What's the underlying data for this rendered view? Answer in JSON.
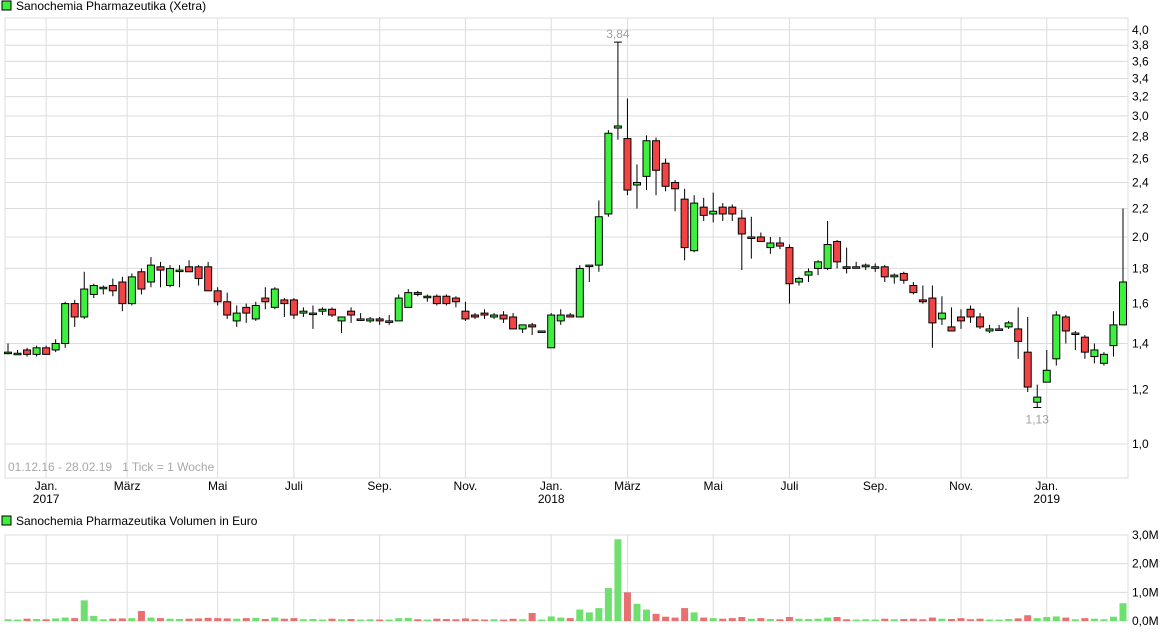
{
  "legend_colors": {
    "green": "#3ef03e",
    "red": "#f24444",
    "grid": "#dcdcdc",
    "annotation": "#a0a0a0"
  },
  "chart_data": [
    {
      "type": "candlestick",
      "title": "Sanochemia Pharmazeutika (Xetra)",
      "note": "01.12.16 - 28.02.19   1 Tick = 1 Woche",
      "y_scale": "log",
      "ylim": [
        0.92,
        4.1
      ],
      "y_ticks": [
        1.0,
        1.2,
        1.4,
        1.6,
        1.8,
        2.0,
        2.2,
        2.4,
        2.6,
        2.8,
        3.0,
        3.2,
        3.4,
        3.6,
        3.8,
        4.0
      ],
      "y_tick_labels": [
        "1,0",
        "1,2",
        "1,4",
        "1,6",
        "1,8",
        "2,0",
        "2,2",
        "2,4",
        "2,6",
        "2,8",
        "3,0",
        "3,2",
        "3,4",
        "3,6",
        "3,8",
        "4,0"
      ],
      "grid": true,
      "x_labels": [
        {
          "month": "Jan.",
          "year": "2017",
          "week": 4
        },
        {
          "month": "März",
          "year": "",
          "week": 12.5
        },
        {
          "month": "Mai",
          "year": "",
          "week": 22
        },
        {
          "month": "Juli",
          "year": "",
          "week": 30
        },
        {
          "month": "Sep.",
          "year": "",
          "week": 39
        },
        {
          "month": "Nov.",
          "year": "",
          "week": 48
        },
        {
          "month": "Jan.",
          "year": "2018",
          "week": 57
        },
        {
          "month": "März",
          "year": "",
          "week": 65
        },
        {
          "month": "Mai",
          "year": "",
          "week": 74
        },
        {
          "month": "Juli",
          "year": "",
          "week": 82
        },
        {
          "month": "Sep.",
          "year": "",
          "week": 91
        },
        {
          "month": "Nov.",
          "year": "",
          "week": 100
        },
        {
          "month": "Jan.",
          "year": "2019",
          "week": 109
        }
      ],
      "annotations": [
        {
          "text": "3,84",
          "week": 64,
          "value": 3.84,
          "position": "above"
        },
        {
          "text": "1,13",
          "week": 108,
          "value": 1.13,
          "position": "below"
        }
      ],
      "ohlc": [
        [
          1.36,
          1.4,
          1.35,
          1.36
        ],
        [
          1.355,
          1.37,
          1.35,
          1.355
        ],
        [
          1.37,
          1.38,
          1.34,
          1.35
        ],
        [
          1.35,
          1.39,
          1.34,
          1.38
        ],
        [
          1.38,
          1.39,
          1.35,
          1.35
        ],
        [
          1.37,
          1.42,
          1.36,
          1.4
        ],
        [
          1.4,
          1.61,
          1.38,
          1.6
        ],
        [
          1.6,
          1.62,
          1.48,
          1.53
        ],
        [
          1.53,
          1.78,
          1.52,
          1.68
        ],
        [
          1.65,
          1.71,
          1.63,
          1.7
        ],
        [
          1.69,
          1.7,
          1.65,
          1.69
        ],
        [
          1.7,
          1.74,
          1.64,
          1.67
        ],
        [
          1.72,
          1.75,
          1.56,
          1.6
        ],
        [
          1.6,
          1.77,
          1.59,
          1.75
        ],
        [
          1.78,
          1.8,
          1.65,
          1.68
        ],
        [
          1.72,
          1.87,
          1.69,
          1.82
        ],
        [
          1.81,
          1.84,
          1.69,
          1.79
        ],
        [
          1.7,
          1.82,
          1.69,
          1.8
        ],
        [
          1.79,
          1.82,
          1.69,
          1.79
        ],
        [
          1.81,
          1.85,
          1.79,
          1.78
        ],
        [
          1.81,
          1.82,
          1.7,
          1.74
        ],
        [
          1.81,
          1.84,
          1.67,
          1.67
        ],
        [
          1.67,
          1.69,
          1.59,
          1.61
        ],
        [
          1.61,
          1.66,
          1.52,
          1.54
        ],
        [
          1.51,
          1.59,
          1.48,
          1.55
        ],
        [
          1.58,
          1.6,
          1.5,
          1.55
        ],
        [
          1.52,
          1.61,
          1.51,
          1.59
        ],
        [
          1.63,
          1.69,
          1.57,
          1.61
        ],
        [
          1.58,
          1.69,
          1.57,
          1.68
        ],
        [
          1.62,
          1.63,
          1.53,
          1.6
        ],
        [
          1.62,
          1.63,
          1.52,
          1.54
        ],
        [
          1.55,
          1.58,
          1.53,
          1.56
        ],
        [
          1.55,
          1.59,
          1.47,
          1.55
        ],
        [
          1.56,
          1.58,
          1.54,
          1.57
        ],
        [
          1.57,
          1.58,
          1.53,
          1.54
        ],
        [
          1.51,
          1.53,
          1.45,
          1.53
        ],
        [
          1.56,
          1.58,
          1.5,
          1.54
        ],
        [
          1.52,
          1.55,
          1.51,
          1.52
        ],
        [
          1.51,
          1.53,
          1.5,
          1.52
        ],
        [
          1.52,
          1.53,
          1.49,
          1.51
        ],
        [
          1.51,
          1.54,
          1.49,
          1.51
        ],
        [
          1.51,
          1.65,
          1.51,
          1.63
        ],
        [
          1.58,
          1.68,
          1.58,
          1.66
        ],
        [
          1.66,
          1.67,
          1.64,
          1.65
        ],
        [
          1.64,
          1.65,
          1.61,
          1.64
        ],
        [
          1.64,
          1.65,
          1.59,
          1.6
        ],
        [
          1.64,
          1.65,
          1.59,
          1.6
        ],
        [
          1.63,
          1.64,
          1.58,
          1.61
        ],
        [
          1.56,
          1.61,
          1.51,
          1.52
        ],
        [
          1.54,
          1.55,
          1.52,
          1.53
        ],
        [
          1.55,
          1.57,
          1.52,
          1.54
        ],
        [
          1.53,
          1.55,
          1.52,
          1.54
        ],
        [
          1.54,
          1.56,
          1.5,
          1.52
        ],
        [
          1.53,
          1.55,
          1.47,
          1.47
        ],
        [
          1.47,
          1.49,
          1.45,
          1.49
        ],
        [
          1.49,
          1.5,
          1.44,
          1.48
        ],
        [
          1.46,
          1.46,
          1.46,
          1.46
        ],
        [
          1.38,
          1.55,
          1.38,
          1.54
        ],
        [
          1.51,
          1.57,
          1.49,
          1.54
        ],
        [
          1.54,
          1.55,
          1.53,
          1.53
        ],
        [
          1.53,
          1.82,
          1.53,
          1.8
        ],
        [
          1.82,
          1.82,
          1.72,
          1.82
        ],
        [
          1.82,
          2.26,
          1.78,
          2.14
        ],
        [
          2.16,
          2.86,
          2.14,
          2.83
        ],
        [
          2.88,
          3.84,
          2.77,
          2.9
        ],
        [
          2.78,
          3.18,
          2.3,
          2.34
        ],
        [
          2.38,
          2.55,
          2.2,
          2.4
        ],
        [
          2.45,
          2.81,
          2.34,
          2.76
        ],
        [
          2.76,
          2.79,
          2.3,
          2.5
        ],
        [
          2.56,
          2.6,
          2.33,
          2.37
        ],
        [
          2.4,
          2.42,
          2.18,
          2.35
        ],
        [
          2.27,
          2.35,
          1.85,
          1.93
        ],
        [
          1.91,
          2.3,
          1.9,
          2.24
        ],
        [
          2.21,
          2.28,
          2.11,
          2.15
        ],
        [
          2.16,
          2.32,
          2.1,
          2.18
        ],
        [
          2.21,
          2.24,
          2.11,
          2.16
        ],
        [
          2.21,
          2.23,
          2.11,
          2.16
        ],
        [
          2.13,
          2.19,
          1.79,
          2.02
        ],
        [
          2.0,
          2.14,
          1.86,
          2.0
        ],
        [
          2.0,
          2.03,
          1.97,
          1.97
        ],
        [
          1.93,
          2.0,
          1.89,
          1.96
        ],
        [
          1.96,
          2.0,
          1.92,
          1.94
        ],
        [
          1.93,
          1.95,
          1.6,
          1.71
        ],
        [
          1.72,
          1.75,
          1.7,
          1.74
        ],
        [
          1.76,
          1.8,
          1.72,
          1.78
        ],
        [
          1.8,
          1.85,
          1.76,
          1.84
        ],
        [
          1.8,
          2.11,
          1.79,
          1.95
        ],
        [
          1.97,
          1.98,
          1.8,
          1.84
        ],
        [
          1.81,
          1.93,
          1.77,
          1.8
        ],
        [
          1.81,
          1.84,
          1.8,
          1.81
        ],
        [
          1.81,
          1.83,
          1.79,
          1.82
        ],
        [
          1.81,
          1.83,
          1.78,
          1.81
        ],
        [
          1.81,
          1.82,
          1.72,
          1.75
        ],
        [
          1.75,
          1.77,
          1.71,
          1.76
        ],
        [
          1.77,
          1.78,
          1.71,
          1.73
        ],
        [
          1.7,
          1.72,
          1.65,
          1.66
        ],
        [
          1.62,
          1.7,
          1.6,
          1.61
        ],
        [
          1.63,
          1.7,
          1.38,
          1.5
        ],
        [
          1.52,
          1.64,
          1.49,
          1.55
        ],
        [
          1.48,
          1.58,
          1.46,
          1.46
        ],
        [
          1.53,
          1.57,
          1.47,
          1.51
        ],
        [
          1.57,
          1.59,
          1.5,
          1.53
        ],
        [
          1.53,
          1.55,
          1.47,
          1.48
        ],
        [
          1.46,
          1.49,
          1.45,
          1.47
        ],
        [
          1.47,
          1.49,
          1.47,
          1.47
        ],
        [
          1.48,
          1.51,
          1.47,
          1.5
        ],
        [
          1.47,
          1.58,
          1.33,
          1.41
        ],
        [
          1.36,
          1.53,
          1.19,
          1.21
        ],
        [
          1.15,
          1.22,
          1.13,
          1.17
        ],
        [
          1.23,
          1.37,
          1.23,
          1.28
        ],
        [
          1.33,
          1.56,
          1.3,
          1.54
        ],
        [
          1.53,
          1.54,
          1.4,
          1.46
        ],
        [
          1.45,
          1.46,
          1.37,
          1.45
        ],
        [
          1.43,
          1.44,
          1.33,
          1.36
        ],
        [
          1.34,
          1.4,
          1.31,
          1.37
        ],
        [
          1.31,
          1.36,
          1.3,
          1.35
        ],
        [
          1.39,
          1.56,
          1.34,
          1.49
        ],
        [
          1.49,
          2.2,
          1.49,
          1.72
        ]
      ]
    },
    {
      "type": "bar",
      "title": "Sanochemia Pharmazeutika Volumen in Euro",
      "ylim": [
        0,
        3.0
      ],
      "y_ticks": [
        0,
        1,
        2,
        3
      ],
      "y_tick_labels": [
        "0,0M",
        "1,0M",
        "2,0M",
        "3,0M"
      ],
      "unit": "M",
      "values": [
        0.06,
        0.05,
        0.08,
        0.07,
        0.06,
        0.09,
        0.12,
        0.1,
        0.72,
        0.18,
        0.06,
        0.08,
        0.09,
        0.1,
        0.35,
        0.12,
        0.1,
        0.08,
        0.07,
        0.08,
        0.09,
        0.11,
        0.1,
        0.09,
        0.08,
        0.1,
        0.11,
        0.07,
        0.12,
        0.08,
        0.1,
        0.06,
        0.07,
        0.05,
        0.08,
        0.06,
        0.07,
        0.05,
        0.06,
        0.05,
        0.05,
        0.1,
        0.11,
        0.06,
        0.05,
        0.08,
        0.07,
        0.06,
        0.09,
        0.06,
        0.05,
        0.06,
        0.05,
        0.08,
        0.06,
        0.28,
        0.05,
        0.16,
        0.12,
        0.1,
        0.4,
        0.3,
        0.45,
        1.15,
        2.85,
        1.0,
        0.6,
        0.4,
        0.25,
        0.15,
        0.12,
        0.45,
        0.3,
        0.12,
        0.1,
        0.08,
        0.1,
        0.14,
        0.08,
        0.1,
        0.07,
        0.06,
        0.14,
        0.08,
        0.07,
        0.08,
        0.12,
        0.14,
        0.06,
        0.05,
        0.06,
        0.05,
        0.08,
        0.06,
        0.07,
        0.08,
        0.06,
        0.12,
        0.08,
        0.07,
        0.1,
        0.06,
        0.08,
        0.05,
        0.05,
        0.07,
        0.09,
        0.2,
        0.1,
        0.14,
        0.16,
        0.12,
        0.06,
        0.1,
        0.08,
        0.06,
        0.15,
        0.62
      ]
    }
  ]
}
